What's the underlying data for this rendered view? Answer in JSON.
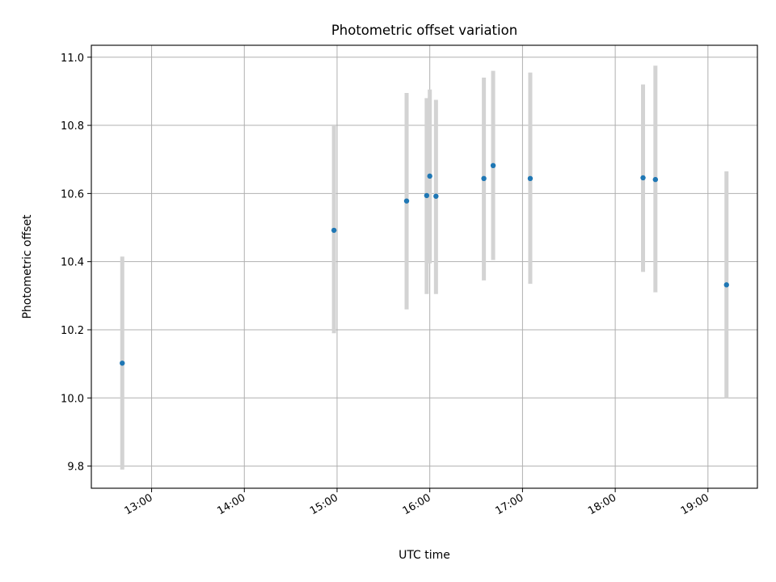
{
  "chart_data": {
    "type": "scatter",
    "title": "Photometric offset variation",
    "xlabel": "UTC time",
    "ylabel": "Photometric offset",
    "x_unit": "UTC time of day",
    "xlim": [
      "12:21",
      "19:32"
    ],
    "ylim": [
      9.735,
      11.035
    ],
    "xticks": [
      "13:00",
      "14:00",
      "15:00",
      "16:00",
      "17:00",
      "18:00",
      "19:00"
    ],
    "yticks": [
      9.8,
      10.0,
      10.2,
      10.4,
      10.6,
      10.8,
      11.0
    ],
    "ytick_labels": [
      "9.8",
      "10.0",
      "10.2",
      "10.4",
      "10.6",
      "10.8",
      "11.0"
    ],
    "grid": true,
    "point_color": "#1f77b4",
    "errorbar_color": "#d3d3d3",
    "points": [
      {
        "x": "12:41",
        "y": 10.102,
        "low": 9.79,
        "high": 10.415
      },
      {
        "x": "14:58",
        "y": 10.492,
        "low": 10.19,
        "high": 10.8
      },
      {
        "x": "15:45",
        "y": 10.578,
        "low": 10.26,
        "high": 10.895
      },
      {
        "x": "15:58",
        "y": 10.594,
        "low": 10.305,
        "high": 10.88
      },
      {
        "x": "16:00",
        "y": 10.651,
        "low": 10.395,
        "high": 10.905
      },
      {
        "x": "16:04",
        "y": 10.592,
        "low": 10.305,
        "high": 10.875
      },
      {
        "x": "16:35",
        "y": 10.644,
        "low": 10.345,
        "high": 10.94
      },
      {
        "x": "16:41",
        "y": 10.682,
        "low": 10.405,
        "high": 10.96
      },
      {
        "x": "17:05",
        "y": 10.644,
        "low": 10.335,
        "high": 10.955
      },
      {
        "x": "18:18",
        "y": 10.646,
        "low": 10.37,
        "high": 10.92
      },
      {
        "x": "18:26",
        "y": 10.641,
        "low": 10.31,
        "high": 10.975
      },
      {
        "x": "19:12",
        "y": 10.332,
        "low": 10.0,
        "high": 10.665
      }
    ]
  }
}
